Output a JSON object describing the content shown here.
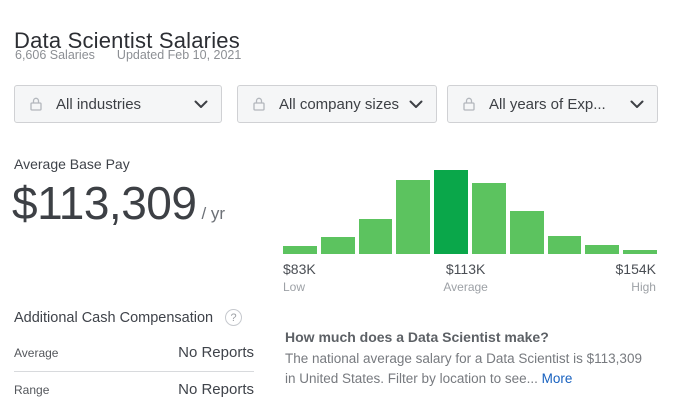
{
  "page": {
    "title": "Data Scientist Salaries",
    "salaries_count": "6,606 Salaries",
    "updated": "Updated Feb 10, 2021"
  },
  "filters": {
    "items": [
      {
        "label": "All industries"
      },
      {
        "label": "All company sizes"
      },
      {
        "label": "All years of Exp..."
      }
    ]
  },
  "base_pay": {
    "label": "Average Base Pay",
    "amount": "$113,309",
    "per": "/ yr"
  },
  "chart_data": {
    "type": "bar",
    "title": "Salary distribution histogram",
    "xlabel": "",
    "ylabel": "",
    "grid": false,
    "legend": false,
    "series": [
      {
        "name": "salary-distribution",
        "relative_heights_pct": [
          10,
          20,
          42,
          88,
          100,
          85,
          51,
          22,
          11,
          5
        ]
      }
    ],
    "highlight_index": 4,
    "bar_color": "#5cc35f",
    "highlight_color": "#0aa74a",
    "x_labels": {
      "low": {
        "value": "$83K",
        "caption": "Low"
      },
      "average": {
        "value": "$113K",
        "caption": "Average"
      },
      "high": {
        "value": "$154K",
        "caption": "High"
      }
    }
  },
  "additional_comp": {
    "title": "Additional Cash Compensation",
    "help_glyph": "?",
    "rows": [
      {
        "label": "Average",
        "value": "No Reports"
      },
      {
        "label": "Range",
        "value": "No Reports"
      }
    ]
  },
  "about": {
    "heading": "How much does a Data Scientist make?",
    "body_line1": "The national average salary for a Data Scientist is $113,309",
    "body_line2": "in United States. Filter by location to see... ",
    "more_label": "More"
  },
  "colors": {
    "bar_green": "#5cc35f",
    "bar_highlight_green": "#0aa74a",
    "link_blue": "#1861bf"
  }
}
